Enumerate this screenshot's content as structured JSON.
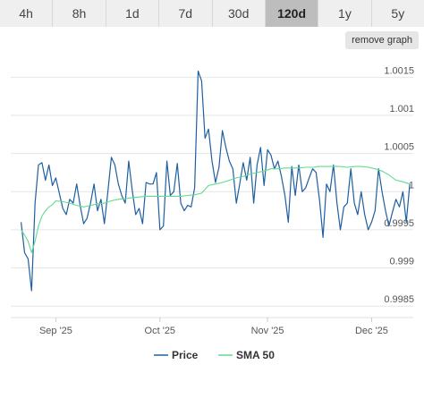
{
  "tabs": [
    {
      "label": "4h",
      "active": false
    },
    {
      "label": "8h",
      "active": false
    },
    {
      "label": "1d",
      "active": false
    },
    {
      "label": "7d",
      "active": false
    },
    {
      "label": "30d",
      "active": false
    },
    {
      "label": "120d",
      "active": true
    },
    {
      "label": "1y",
      "active": false
    },
    {
      "label": "5y",
      "active": false
    }
  ],
  "remove_graph_label": "remove graph",
  "colors": {
    "price": "#1f5fa0",
    "sma": "#5fdc8c",
    "grid": "#e6e6e6"
  },
  "chart_data": {
    "type": "line",
    "title": "",
    "xlabel": "",
    "ylabel": "",
    "ylim": [
      0.99835,
      1.00175
    ],
    "y_ticks": [
      0.9985,
      0.999,
      0.9995,
      1,
      1.0005,
      1.001,
      1.0015
    ],
    "y_tick_labels": [
      "0.9985",
      "0.999",
      "0.9995",
      "1",
      "1.0005",
      "1.001",
      "1.0015"
    ],
    "x_ticks": [
      {
        "day": 10,
        "label": "Sep '25"
      },
      {
        "day": 40,
        "label": "Oct '25"
      },
      {
        "day": 71,
        "label": "Nov '25"
      },
      {
        "day": 101,
        "label": "Dec '25"
      }
    ],
    "x_range": [
      -3,
      113
    ],
    "legend": [
      "Price",
      "SMA 50"
    ],
    "legend_position": "bottom",
    "grid": true,
    "series": [
      {
        "name": "Price",
        "x": [
          0,
          1,
          2,
          3,
          4,
          5,
          6,
          7,
          8,
          9,
          10,
          11,
          12,
          13,
          14,
          15,
          16,
          17,
          18,
          19,
          20,
          21,
          22,
          23,
          24,
          25,
          26,
          27,
          28,
          29,
          30,
          31,
          32,
          33,
          34,
          35,
          36,
          37,
          38,
          39,
          40,
          41,
          42,
          43,
          44,
          45,
          46,
          47,
          48,
          49,
          50,
          51,
          52,
          53,
          54,
          55,
          56,
          57,
          58,
          59,
          60,
          61,
          62,
          63,
          64,
          65,
          66,
          67,
          68,
          69,
          70,
          71,
          72,
          73,
          74,
          75,
          76,
          77,
          78,
          79,
          80,
          81,
          82,
          83,
          84,
          85,
          86,
          87,
          88,
          89,
          90,
          91,
          92,
          93,
          94,
          95,
          96,
          97,
          98,
          99,
          100,
          101,
          102,
          103,
          104,
          105,
          106,
          107,
          108,
          109,
          110,
          111,
          112
        ],
        "y": [
          0.9996,
          0.9992,
          0.99912,
          0.9987,
          0.99985,
          1.00035,
          1.00038,
          1.00015,
          1.00035,
          1.00008,
          1.00018,
          0.99998,
          0.99978,
          0.9997,
          0.9999,
          0.99985,
          1.0001,
          0.99982,
          0.99958,
          0.99965,
          0.99985,
          1.0001,
          0.99975,
          0.9999,
          0.99958,
          1.0,
          1.00045,
          1.00035,
          1.0001,
          0.99995,
          0.99985,
          1.0004,
          1.00002,
          0.9997,
          0.99978,
          0.99958,
          1.00012,
          1.0001,
          1.0001,
          1.00025,
          0.9995,
          0.99955,
          1.0004,
          0.99995,
          1.0,
          1.00037,
          0.99985,
          0.99975,
          0.99982,
          0.9998,
          1.00005,
          1.00158,
          1.00145,
          1.0007,
          1.00082,
          1.0004,
          1.00012,
          1.00032,
          1.0008,
          1.00058,
          1.0004,
          1.0003,
          0.99985,
          1.0001,
          1.00038,
          1.00015,
          1.00045,
          0.99985,
          1.00035,
          1.00058,
          1.00008,
          1.00055,
          1.00048,
          1.0003,
          1.0004,
          1.0002,
          0.99995,
          0.9996,
          1.00033,
          0.99995,
          1.00035,
          1.0,
          1.00005,
          1.00018,
          1.0003,
          1.00025,
          0.99988,
          0.9994,
          1.0001,
          1.0,
          1.00035,
          0.99985,
          0.9995,
          0.9998,
          0.99985,
          1.0003,
          0.99985,
          0.9997,
          1.0,
          0.9997,
          0.9995,
          0.9996,
          0.99975,
          1.0003,
          1.0,
          0.99975,
          0.99955,
          0.99973,
          0.9999,
          0.9998,
          1.0,
          0.9996,
          1.0001
        ]
      },
      {
        "name": "SMA 50",
        "x": [
          0,
          1,
          2,
          3,
          4,
          5,
          6,
          7,
          8,
          9,
          10,
          12,
          14,
          16,
          18,
          20,
          22,
          24,
          26,
          28,
          30,
          32,
          34,
          36,
          38,
          40,
          42,
          44,
          46,
          48,
          50,
          52,
          54,
          56,
          58,
          60,
          62,
          64,
          66,
          68,
          70,
          72,
          74,
          76,
          78,
          80,
          82,
          84,
          86,
          88,
          90,
          92,
          94,
          96,
          98,
          100,
          102,
          104,
          106,
          108,
          110,
          112
        ],
        "y": [
          0.9995,
          0.99943,
          0.99935,
          0.9992,
          0.99935,
          0.99955,
          0.99968,
          0.99975,
          0.9998,
          0.99983,
          0.99988,
          0.99987,
          0.99985,
          0.99982,
          0.9998,
          0.99982,
          0.99984,
          0.99985,
          0.99988,
          0.9999,
          0.99991,
          0.99992,
          0.99993,
          0.99994,
          0.99994,
          0.99994,
          0.99994,
          0.99994,
          0.99994,
          0.99995,
          0.99996,
          0.99998,
          1.00008,
          1.0001,
          1.00012,
          1.00015,
          1.00018,
          1.0002,
          1.00023,
          1.00025,
          1.00027,
          1.0003,
          1.0003,
          1.00031,
          1.00031,
          1.00031,
          1.00032,
          1.00032,
          1.00033,
          1.00033,
          1.00033,
          1.00033,
          1.00032,
          1.00033,
          1.00033,
          1.00032,
          1.0003,
          1.00027,
          1.00022,
          1.00015,
          1.00013,
          1.0001
        ]
      }
    ]
  }
}
